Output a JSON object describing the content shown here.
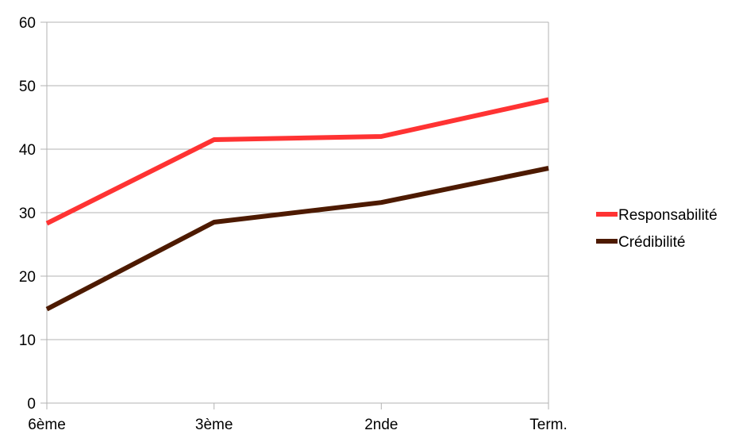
{
  "chart_data": {
    "type": "line",
    "categories": [
      "6ème",
      "3ème",
      "2nde",
      "Term."
    ],
    "series": [
      {
        "name": "Responsabilité",
        "values": [
          28.3,
          41.5,
          42.0,
          47.8
        ],
        "color": "#ff3333"
      },
      {
        "name": "Crédibilité",
        "values": [
          14.8,
          28.5,
          31.6,
          37.0
        ],
        "color": "#4d1a00"
      }
    ],
    "ylim": [
      0,
      60
    ],
    "y_ticks": [
      "0",
      "10",
      "20",
      "30",
      "40",
      "50",
      "60"
    ],
    "grid": true,
    "legend_position": "right",
    "gridline_color": "#b3b3b3"
  }
}
